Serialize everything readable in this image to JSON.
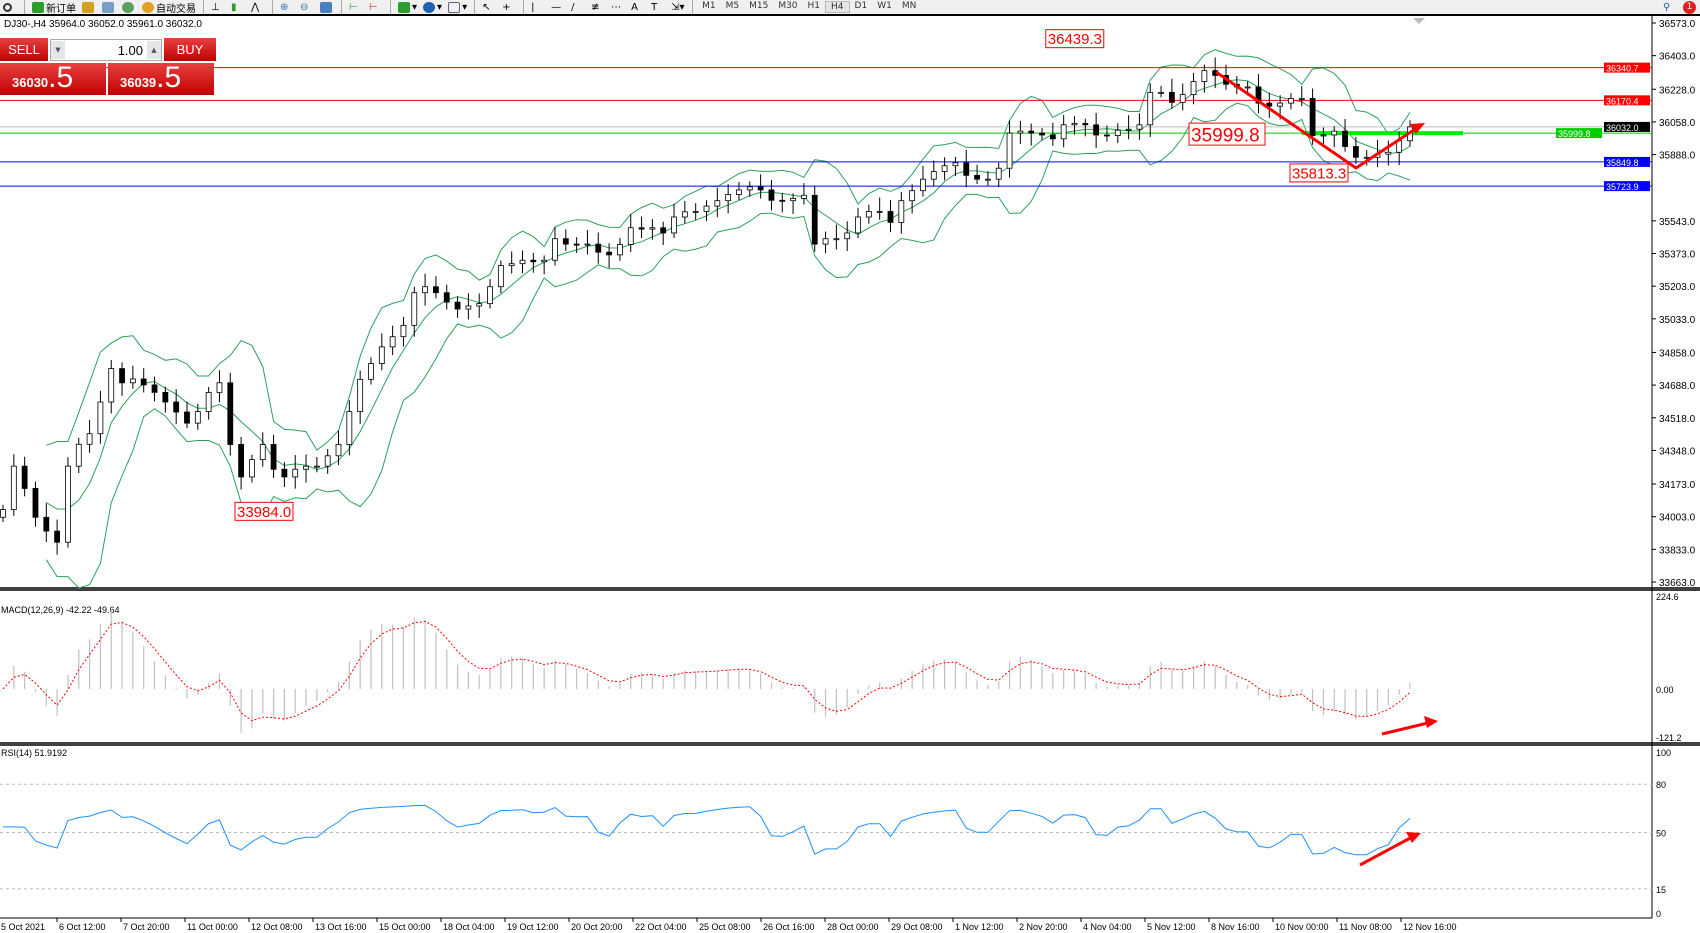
{
  "toolbar": {
    "new_order": "新订单",
    "auto_trading": "自动交易",
    "timeframes": [
      "M1",
      "M5",
      "M15",
      "M30",
      "H1",
      "H4",
      "D1",
      "W1",
      "MN"
    ],
    "active_timeframe": "H4",
    "notification_count": "1"
  },
  "symbol_info": "DJ30-,H4  35964.0 36052.0 35961.0 36032.0",
  "one_click": {
    "sell_label": "SELL",
    "buy_label": "BUY",
    "lot": "1.00",
    "sell_main": "36030",
    "sell_big": ".5",
    "buy_main": "36039",
    "buy_big": ".5"
  },
  "colors": {
    "bull": "#ffffff",
    "bear": "#000000",
    "bands": "#2ca05a",
    "resistance": "#ff0000",
    "support": "#0000ff",
    "pivot": "#00cc00",
    "macd_signal": "#ff0000",
    "histogram": "#c0c0c0",
    "rsi": "#1e90ff",
    "annotation": "#ff0000"
  },
  "chart_data": {
    "type": "candlestick",
    "price_ticks": [
      "36573.0",
      "36403.0",
      "36228.0",
      "36058.0",
      "35888.0",
      "35543.0",
      "35373.0",
      "35203.0",
      "35033.0",
      "34858.0",
      "34688.0",
      "34518.0",
      "34348.0",
      "34173.0",
      "34003.0",
      "33833.0",
      "33663.0"
    ],
    "ylim": [
      33663,
      36573
    ],
    "closes": [
      34040,
      34266,
      34150,
      34000,
      33928,
      33870,
      34266,
      34380,
      34435,
      34600,
      34774,
      34700,
      34720,
      34689,
      34650,
      34600,
      34548,
      34490,
      34550,
      34650,
      34700,
      34379,
      34210,
      34300,
      34379,
      34250,
      34210,
      34250,
      34266,
      34266,
      34320,
      34379,
      34550,
      34718,
      34800,
      34887,
      34940,
      34999,
      35169,
      35200,
      35169,
      35120,
      35084,
      35100,
      35112,
      35200,
      35310,
      35320,
      35338,
      35330,
      35338,
      35450,
      35422,
      35420,
      35422,
      35380,
      35366,
      35420,
      35507,
      35500,
      35507,
      35480,
      35563,
      35590,
      35592,
      35620,
      35648,
      35680,
      35704,
      35720,
      35704,
      35650,
      35648,
      35660,
      35676,
      35422,
      35450,
      35450,
      35480,
      35563,
      35592,
      35592,
      35535,
      35648,
      35700,
      35760,
      35800,
      35830,
      35845,
      35780,
      35760,
      35760,
      35817,
      36000,
      36010,
      36000,
      35990,
      35970,
      36043,
      36050,
      36043,
      35990,
      35987,
      36015,
      36020,
      36043,
      36212,
      36212,
      36160,
      36200,
      36268,
      36325,
      36300,
      36254,
      36240,
      36240,
      36156,
      36140,
      36156,
      36180,
      36180,
      35987,
      35990,
      36010,
      35930,
      35874,
      35874,
      35890,
      35900,
      35960,
      36032
    ],
    "levels": [
      {
        "value": 36340.7,
        "label": "36340.7",
        "color": "#ff0000"
      },
      {
        "value": 36170.4,
        "label": "36170.4",
        "color": "#ff0000"
      },
      {
        "value": 36032.0,
        "label": "36032.0",
        "color": "#c0c0c0"
      },
      {
        "value": 35999.8,
        "label": "35999.8",
        "color": "#00cc00"
      },
      {
        "value": 35849.8,
        "label": "35849.8",
        "color": "#0000ff"
      },
      {
        "value": 35723.9,
        "label": "35723.9",
        "color": "#0000ff"
      }
    ],
    "annotations": [
      {
        "text": "36439.3",
        "price": 36439.3,
        "bar": 103
      },
      {
        "text": "35999.8",
        "price": 35999.8,
        "bar": 108
      },
      {
        "text": "35813.3",
        "price": 35813.3,
        "bar": 118
      },
      {
        "text": "33984.0",
        "price": 33984.0,
        "bar": 21
      }
    ],
    "time_labels": [
      "5 Oct 2021",
      "6 Oct 12:00",
      "7 Oct 20:00",
      "11 Oct 00:00",
      "12 Oct 08:00",
      "13 Oct 16:00",
      "15 Oct 00:00",
      "18 Oct 04:00",
      "19 Oct 12:00",
      "20 Oct 20:00",
      "22 Oct 04:00",
      "25 Oct 08:00",
      "26 Oct 16:00",
      "28 Oct 00:00",
      "29 Oct 08:00",
      "1 Nov 12:00",
      "2 Nov 20:00",
      "4 Nov 04:00",
      "5 Nov 12:00",
      "8 Nov 16:00",
      "10 Nov 00:00",
      "11 Nov 08:00",
      "12 Nov 16:00"
    ],
    "macd": {
      "label": "MACD(12,26,9) -42.22 -49.64",
      "ticks": [
        "224.6",
        "0.00",
        "-121.2"
      ]
    },
    "rsi": {
      "label": "RSI(14) 51.9192",
      "ticks": [
        "100",
        "80",
        "50",
        "15",
        "0"
      ],
      "levels": [
        80,
        50,
        15
      ]
    }
  }
}
